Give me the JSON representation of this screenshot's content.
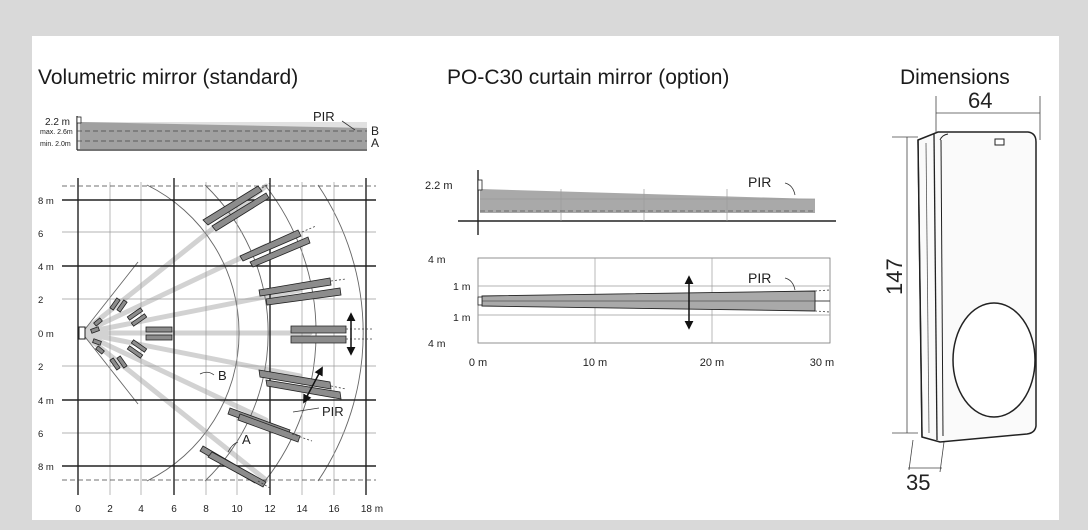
{
  "titles": {
    "volumetric": "Volumetric mirror (standard)",
    "curtain": "PO-C30 curtain mirror (option)",
    "dimensions": "Dimensions"
  },
  "volumetric": {
    "side": {
      "height_label": "2.2 m",
      "max_label": "max. 2.6m",
      "min_label": "min. 2.0m",
      "pir": "PIR",
      "a": "A",
      "b": "B"
    },
    "top": {
      "y_labels": [
        "8 m",
        "6",
        "4 m",
        "2",
        "0 m",
        "2",
        "4 m",
        "6",
        "8 m"
      ],
      "x_labels": [
        "0",
        "2",
        "4",
        "6",
        "8",
        "10",
        "12",
        "14",
        "16",
        "18 m"
      ],
      "b_label": "B",
      "a_label": "A",
      "pir": "PIR"
    }
  },
  "curtain": {
    "side": {
      "height_label": "2.2 m",
      "pir": "PIR"
    },
    "top": {
      "y_labels": [
        "4 m",
        "1 m",
        "1 m",
        "4 m"
      ],
      "x_labels": [
        "0 m",
        "10 m",
        "20 m",
        "30 m"
      ],
      "pir": "PIR"
    }
  },
  "dimensions": {
    "width": "64",
    "height": "147",
    "depth": "35"
  },
  "colors": {
    "zone": "#a9a9a9",
    "zone_dark": "#8c8c8c",
    "ray": "#d2d2d2",
    "line": "#222222"
  }
}
